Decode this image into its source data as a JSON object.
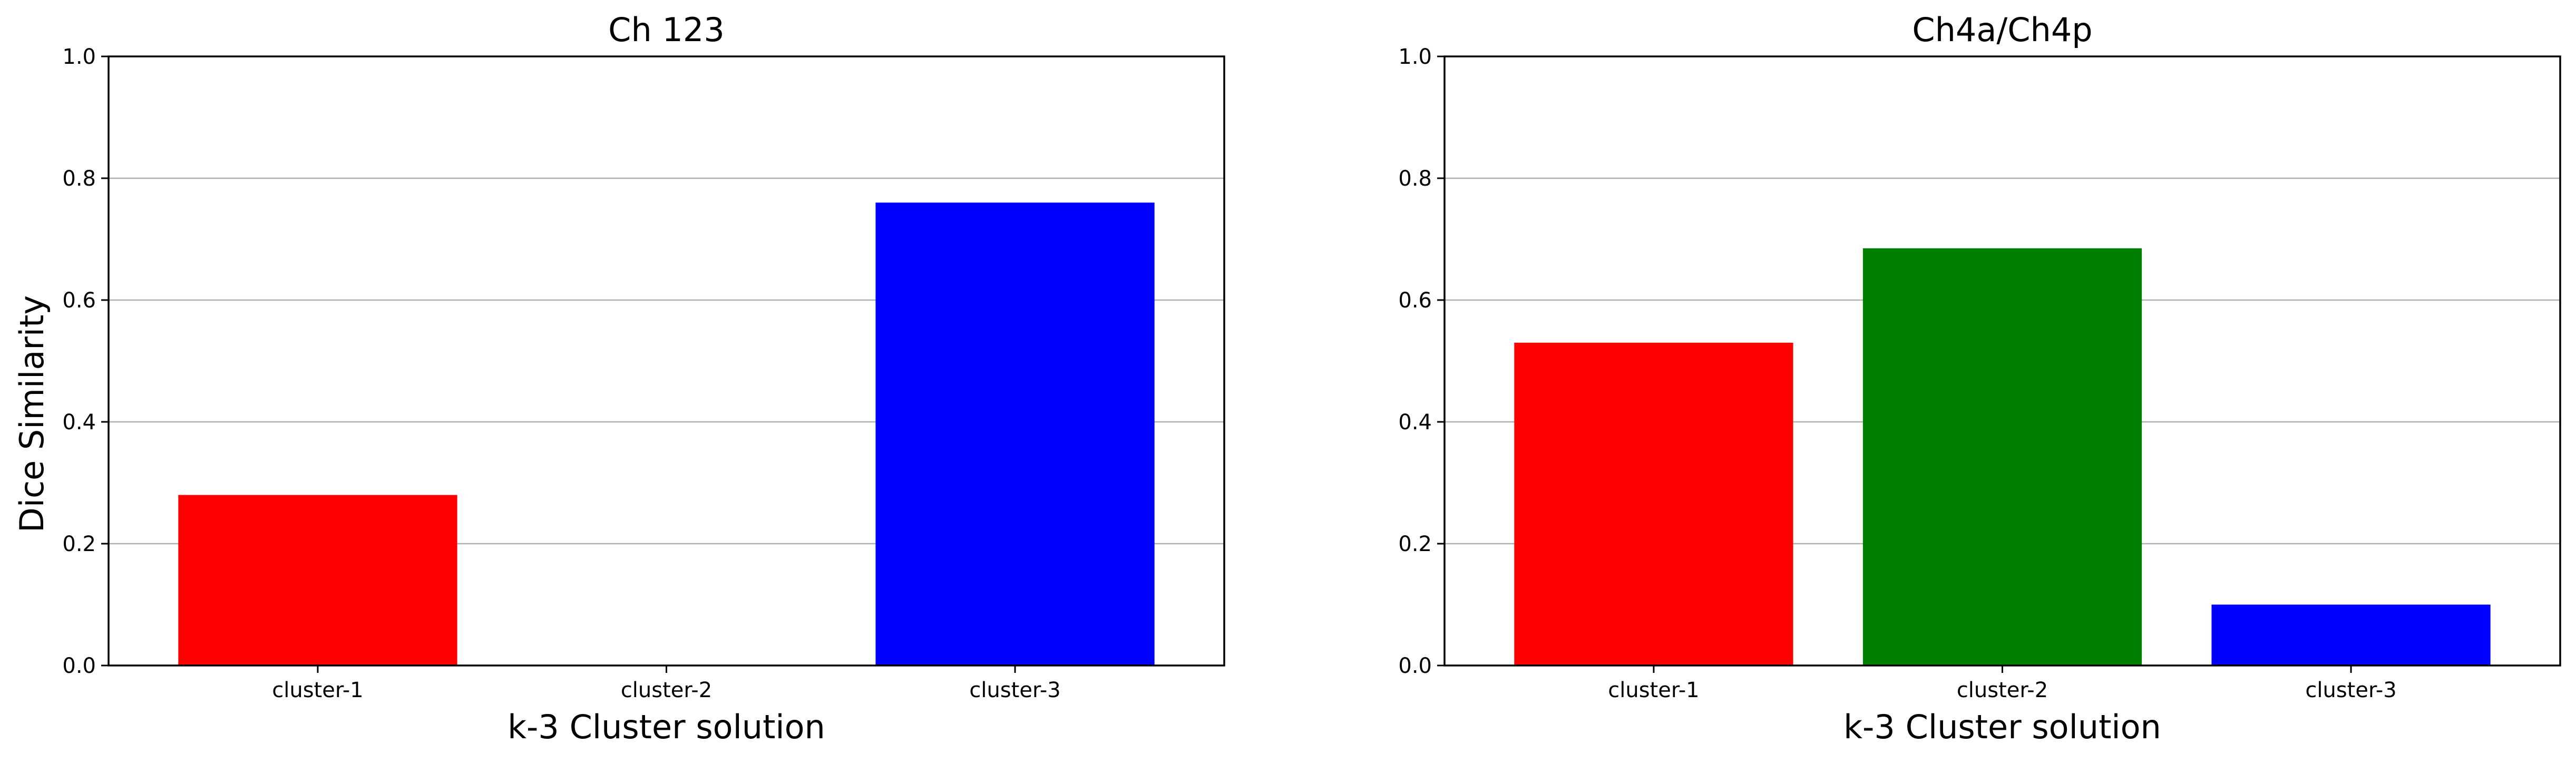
{
  "figure": {
    "ylabel": "Dice Similarity"
  },
  "chart_data": [
    {
      "type": "bar",
      "title": "Ch 123",
      "xlabel": "k-3 Cluster solution",
      "ylabel": "Dice Similarity",
      "categories": [
        "cluster-1",
        "cluster-2",
        "cluster-3"
      ],
      "values": [
        0.28,
        0.0,
        0.76
      ],
      "colors": [
        "#ff0000",
        "#008000",
        "#0000ff"
      ],
      "ylim": [
        0,
        1.0
      ],
      "yticks": [
        "0.0",
        "0.2",
        "0.4",
        "0.6",
        "0.8",
        "1.0"
      ],
      "grid": "y"
    },
    {
      "type": "bar",
      "title": "Ch4a/Ch4p",
      "xlabel": "k-3 Cluster solution",
      "ylabel": "",
      "categories": [
        "cluster-1",
        "cluster-2",
        "cluster-3"
      ],
      "values": [
        0.53,
        0.685,
        0.1
      ],
      "colors": [
        "#ff0000",
        "#008000",
        "#0000ff"
      ],
      "ylim": [
        0,
        1.0
      ],
      "yticks": [
        "0.0",
        "0.2",
        "0.4",
        "0.6",
        "0.8",
        "1.0"
      ],
      "grid": "y"
    }
  ]
}
